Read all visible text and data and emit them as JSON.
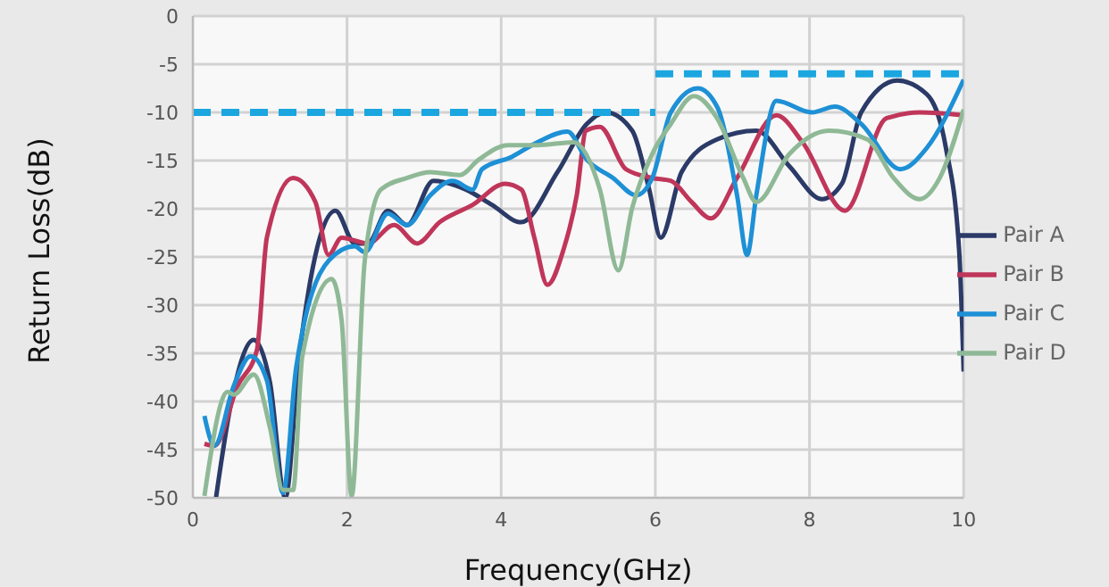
{
  "chart_data": {
    "type": "line",
    "xlabel": "Frequency(GHz)",
    "ylabel": "Return Loss(dB)",
    "xlim": [
      0,
      10
    ],
    "xticks": [
      0,
      2,
      4,
      6,
      8,
      10
    ],
    "ylim": [
      -50,
      0
    ],
    "yticks": [
      0,
      -5,
      -10,
      -15,
      -20,
      -25,
      -30,
      -35,
      -40,
      -45,
      -50
    ],
    "grid": true,
    "legend": "right",
    "marker": "none",
    "line_style": "solid",
    "series": [
      {
        "name": "Pair A",
        "color": "#2b3a67",
        "x": [
          0.3,
          0.5,
          0.79,
          1.0,
          1.2,
          1.38,
          1.85,
          2.1,
          2.27,
          2.53,
          2.78,
          3.12,
          3.54,
          3.88,
          4.26,
          4.73,
          5.11,
          5.36,
          5.7,
          5.92,
          6.07,
          6.34,
          6.8,
          7.31,
          7.74,
          8.16,
          8.42,
          8.67,
          9.14,
          9.52,
          9.77,
          9.94,
          10
        ],
        "values": [
          -50,
          -40,
          -33.6,
          -38,
          -50,
          -35.3,
          -20.2,
          -23.6,
          -23.6,
          -20.2,
          -21.7,
          -17.1,
          -18,
          -19.6,
          -21.4,
          -16.2,
          -11.2,
          -10,
          -11.9,
          -18,
          -23,
          -16.2,
          -12.8,
          -11.9,
          -15.6,
          -19,
          -17.4,
          -10,
          -6.7,
          -8.1,
          -13.7,
          -24.2,
          -36.9
        ]
      },
      {
        "name": "Pair B",
        "color": "#c0365a",
        "x": [
          0.15,
          0.28,
          0.58,
          0.83,
          0.96,
          1.3,
          1.59,
          1.76,
          1.93,
          2.27,
          2.61,
          2.91,
          3.2,
          3.63,
          4.05,
          4.26,
          4.43,
          4.6,
          4.81,
          4.98,
          5.1,
          5.28,
          5.62,
          5.96,
          6.2,
          6.47,
          6.72,
          7.06,
          7.57,
          7.91,
          8.46,
          9.0,
          9.43,
          10
        ],
        "values": [
          -44.4,
          -44.6,
          -38.4,
          -34.7,
          -23,
          -16.8,
          -19.3,
          -24.8,
          -23,
          -23.6,
          -21.7,
          -23.6,
          -21.4,
          -19.6,
          -17.4,
          -18,
          -23,
          -27.9,
          -24.2,
          -18.6,
          -11.9,
          -11.5,
          -15.9,
          -16.8,
          -17.1,
          -19.3,
          -21,
          -16.8,
          -10.3,
          -13.1,
          -20.2,
          -10.6,
          -10,
          -10.3
        ]
      },
      {
        "name": "Pair C",
        "color": "#1e90d6",
        "x": [
          0.15,
          0.28,
          0.53,
          0.75,
          0.96,
          1.17,
          1.34,
          1.76,
          2.1,
          2.23,
          2.53,
          2.78,
          3.08,
          3.37,
          3.63,
          3.75,
          4.14,
          4.47,
          4.86,
          5.11,
          5.45,
          5.75,
          5.96,
          6.2,
          6.55,
          6.8,
          7.06,
          7.19,
          7.31,
          7.57,
          8.03,
          8.33,
          8.67,
          9.18,
          9.52,
          10
        ],
        "values": [
          -41.5,
          -44.6,
          -38.4,
          -35.3,
          -37.8,
          -49.5,
          -36.5,
          -25.4,
          -23.9,
          -24.5,
          -20.5,
          -21.7,
          -18.6,
          -17.1,
          -18,
          -15.9,
          -14.6,
          -13.1,
          -12,
          -14.9,
          -16.8,
          -18.6,
          -16.8,
          -10,
          -7.5,
          -9.4,
          -18.6,
          -24.8,
          -18.6,
          -8.8,
          -10,
          -9.4,
          -11.2,
          -15.9,
          -13.7,
          -6.6
        ]
      },
      {
        "name": "Pair D",
        "color": "#8fb996",
        "x": [
          0.15,
          0.45,
          0.53,
          0.79,
          1.0,
          1.17,
          1.3,
          1.42,
          1.8,
          1.93,
          2.06,
          2.23,
          2.44,
          2.78,
          3.08,
          3.46,
          3.71,
          4.09,
          4.47,
          4.94,
          5.28,
          5.52,
          5.7,
          5.96,
          6.2,
          6.5,
          6.8,
          7.14,
          7.31,
          7.74,
          8.25,
          8.75,
          9.09,
          9.43,
          9.69,
          10
        ],
        "values": [
          -49.8,
          -39,
          -39.3,
          -37.2,
          -42.7,
          -49.2,
          -49.2,
          -35.3,
          -27.3,
          -31.6,
          -49.8,
          -25.4,
          -18,
          -16.8,
          -16.2,
          -16.5,
          -14.9,
          -13.4,
          -13.4,
          -13.1,
          -18,
          -26.4,
          -19.9,
          -14.3,
          -11.2,
          -8.3,
          -10.6,
          -16.8,
          -19.3,
          -14.3,
          -11.9,
          -12.8,
          -16.8,
          -19,
          -16.8,
          -9.7
        ]
      },
      {
        "color": "#1ba6e0",
        "line_style": "dashed",
        "x": [
          0,
          6
        ],
        "values": [
          -10,
          -10
        ]
      },
      {
        "color": "#1ba6e0",
        "line_style": "dashed",
        "x": [
          6,
          10
        ],
        "values": [
          -6,
          -6
        ]
      }
    ]
  }
}
